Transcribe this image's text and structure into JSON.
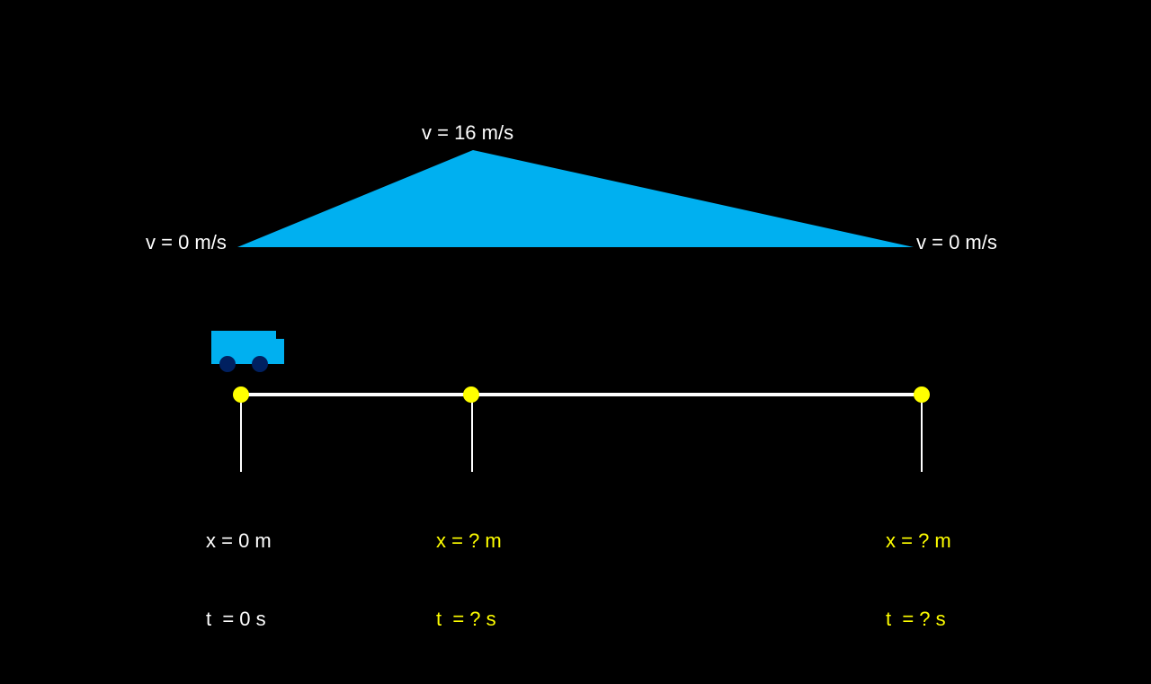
{
  "velocity_graph": {
    "peak_label": "v = 16 m/s",
    "start_label": "v = 0 m/s",
    "end_label": "v = 0 m/s",
    "fill_color": "#00b0f0"
  },
  "track": {
    "line_color": "#ffffff",
    "marker_color": "#ffff00",
    "points": [
      {
        "x_label": "x = 0 m",
        "t_label": "t  = 0 s",
        "text_color": "#ffffff"
      },
      {
        "x_label": "x = ? m",
        "t_label": "t  = ? s",
        "text_color": "#ffff00"
      },
      {
        "x_label": "x = ? m",
        "t_label": "t  = ? s",
        "text_color": "#ffff00"
      }
    ]
  },
  "vehicle": {
    "icon": "truck-icon",
    "body_color": "#00b0f0",
    "wheel_color": "#002060"
  }
}
